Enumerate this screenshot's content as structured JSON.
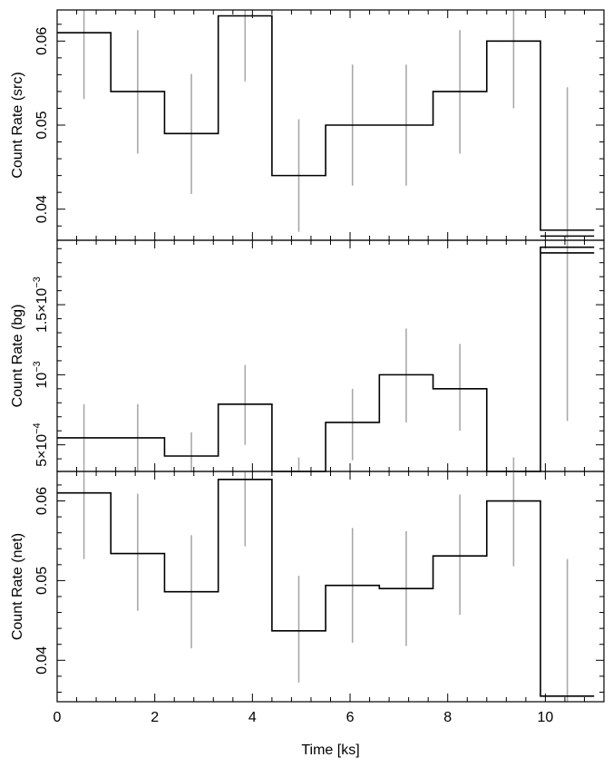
{
  "chart_data": {
    "type": "line",
    "x_bin_edges": [
      0,
      1.1,
      2.2,
      3.3,
      4.4,
      5.5,
      6.6,
      7.7,
      8.8,
      9.9,
      11
    ],
    "xlim": [
      0,
      11.2
    ],
    "x_ticks": [
      0,
      2,
      4,
      6,
      8,
      10
    ],
    "x_tick_labels": [
      "0",
      "2",
      "4",
      "6",
      "8",
      "10"
    ],
    "xlabel": "Time [ks]",
    "panels": [
      {
        "ylabel": "Count Rate (src)",
        "ylim": [
          0.0363,
          0.0637
        ],
        "y_ticks": [
          0.04,
          0.05,
          0.06
        ],
        "y_tick_labels": [
          "0.04",
          "0.05",
          "0.06"
        ],
        "values": [
          0.061,
          0.054,
          0.049,
          0.063,
          0.044,
          0.05,
          0.05,
          0.054,
          0.06,
          0.0375
        ],
        "err_low": [
          0.0531,
          0.0466,
          0.0418,
          0.0552,
          0.0373,
          0.0428,
          0.0428,
          0.0466,
          0.052,
          0.0365
        ],
        "err_high": [
          0.0637,
          0.0613,
          0.0561,
          0.0637,
          0.0507,
          0.0572,
          0.0572,
          0.0613,
          0.0637,
          0.0545
        ],
        "low_bin": {
          "value": 0.0368
        }
      },
      {
        "ylabel": "Count Rate (bg)",
        "ylim": [
          0.00031,
          0.00196
        ],
        "y_ticks": [
          0.0005,
          0.001,
          0.0015
        ],
        "y_tick_labels": [
          {
            "mant": "5×10",
            "exp": "−4"
          },
          {
            "mant": "10",
            "exp": "−3"
          },
          {
            "mant": "1.5×10",
            "exp": "−3"
          }
        ],
        "values": [
          0.00055,
          0.00055,
          0.00042,
          0.00079,
          0.00031,
          0.00066,
          0.001,
          0.0009,
          0.00031,
          0.00191
        ],
        "err_low": [
          0.00031,
          0.00031,
          0.00031,
          0.0005,
          0.00031,
          0.00039,
          0.00066,
          0.0006,
          0.00031,
          0.00067
        ],
        "err_high": [
          0.00079,
          0.00079,
          0.00059,
          0.00107,
          0.00041,
          0.0009,
          0.00133,
          0.00122,
          0.00041,
          0.00196
        ],
        "low_bin": {
          "value": 0.00187
        }
      },
      {
        "ylabel": "Count Rate (net)",
        "ylim": [
          0.0348,
          0.0637
        ],
        "y_ticks": [
          0.04,
          0.05,
          0.06
        ],
        "y_tick_labels": [
          "0.04",
          "0.05",
          "0.06"
        ],
        "values": [
          0.061,
          0.0534,
          0.0486,
          0.0627,
          0.0437,
          0.0494,
          0.049,
          0.0531,
          0.06,
          0.0355
        ],
        "err_low": [
          0.0527,
          0.0462,
          0.0415,
          0.0543,
          0.0372,
          0.0422,
          0.0418,
          0.0457,
          0.0518,
          0.0348
        ],
        "err_high": [
          0.0637,
          0.0609,
          0.0557,
          0.0637,
          0.0506,
          0.0566,
          0.0562,
          0.0608,
          0.0637,
          0.0527
        ]
      }
    ],
    "colors": {
      "step": "#000000",
      "errorbar": "#a9a9a9"
    }
  }
}
